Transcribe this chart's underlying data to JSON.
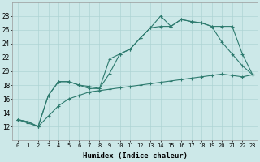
{
  "xlabel": "Humidex (Indice chaleur)",
  "x": [
    0,
    1,
    2,
    3,
    4,
    5,
    6,
    7,
    8,
    9,
    10,
    11,
    12,
    13,
    14,
    15,
    16,
    17,
    18,
    19,
    20,
    21,
    22,
    23
  ],
  "line1": [
    13,
    12.7,
    12,
    16.5,
    18.5,
    18.5,
    18,
    17.5,
    17.5,
    21.8,
    22.5,
    23.2,
    24.8,
    26.3,
    28.0,
    26.5,
    27.5,
    27.2,
    27.0,
    26.5,
    26.5,
    26.5,
    22.5,
    19.5
  ],
  "line2": [
    13,
    12.7,
    12,
    16.5,
    18.5,
    18.5,
    18,
    17.8,
    17.5,
    19.7,
    22.5,
    23.2,
    24.8,
    26.3,
    26.5,
    26.5,
    27.5,
    27.2,
    27.0,
    26.5,
    24.2,
    22.5,
    20.8,
    19.5
  ],
  "line3": [
    13,
    12.5,
    12,
    13.5,
    15.0,
    16.0,
    16.5,
    17.0,
    17.2,
    17.4,
    17.6,
    17.8,
    18.0,
    18.2,
    18.4,
    18.6,
    18.8,
    19.0,
    19.2,
    19.4,
    19.6,
    19.4,
    19.2,
    19.5
  ],
  "line_color": "#2d7a6e",
  "bg_color": "#cce8e8",
  "grid_color": "#aed4d4",
  "ylim": [
    10,
    30
  ],
  "yticks": [
    12,
    14,
    16,
    18,
    20,
    22,
    24,
    26,
    28
  ],
  "xlim": [
    -0.5,
    23.5
  ],
  "figsize": [
    3.2,
    2.0
  ],
  "dpi": 100
}
